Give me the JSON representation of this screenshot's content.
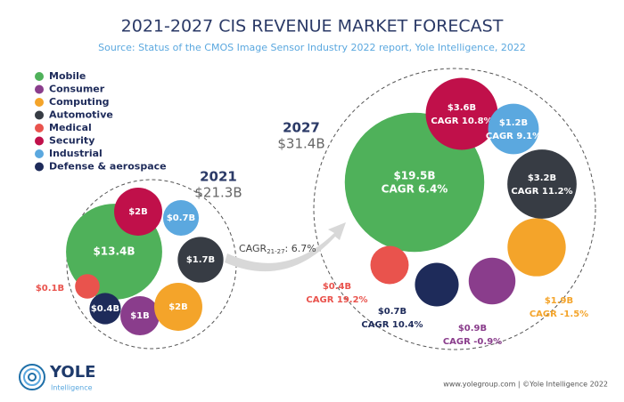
{
  "title": "2021-2027 CIS REVENUE MARKET FORECAST",
  "subtitle": "Source: Status of the CMOS Image Sensor Industry 2022 report, Yole Intelligence, 2022",
  "logo": {
    "name": "YOLE",
    "tagline": "Intelligence"
  },
  "footer": "www.yolegroup.com | ©Yole Intelligence 2022",
  "growth": {
    "label": "CAGR",
    "subscript": "21-27",
    "value": 6.7,
    "value_label": ": 6.7%"
  },
  "chart_data": [
    {
      "type": "bubble",
      "year": "2021",
      "total": 21.3,
      "total_label": "$21.3B",
      "categories": [
        "Mobile",
        "Consumer",
        "Computing",
        "Automotive",
        "Medical",
        "Security",
        "Industrial",
        "Defense & aerospace"
      ],
      "colors": [
        "#4fb15a",
        "#8a3d8c",
        "#f4a42a",
        "#373c44",
        "#e9534d",
        "#c0104a",
        "#5ba8df",
        "#1e2b5a"
      ],
      "values": [
        13.4,
        1,
        2,
        1.7,
        0.1,
        2,
        0.7,
        0.4
      ],
      "value_labels": [
        "$13.4B",
        "$1B",
        "$2B",
        "$1.7B",
        "$0.1B",
        "$2B",
        "$0.7B",
        "$0.4B"
      ]
    },
    {
      "type": "bubble",
      "year": "2027",
      "total": 31.4,
      "total_label": "$31.4B",
      "categories": [
        "Mobile",
        "Consumer",
        "Computing",
        "Automotive",
        "Medical",
        "Security",
        "Industrial",
        "Defense & aerospace"
      ],
      "colors": [
        "#4fb15a",
        "#8a3d8c",
        "#f4a42a",
        "#373c44",
        "#e9534d",
        "#c0104a",
        "#5ba8df",
        "#1e2b5a"
      ],
      "values": [
        19.5,
        0.9,
        1.9,
        3.2,
        0.4,
        3.6,
        1.2,
        0.7
      ],
      "value_labels": [
        "$19.5B",
        "$0.9B",
        "$1.9B",
        "$3.2B",
        "$0.4B",
        "$3.6B",
        "$1.2B",
        "$0.7B"
      ],
      "cagr": [
        6.4,
        -0.9,
        -1.5,
        11.2,
        19.2,
        10.8,
        9.1,
        10.4
      ],
      "cagr_labels": [
        "CAGR 6.4%",
        "CAGR -0.9%",
        "CAGR -1.5%",
        "CAGR 11.2%",
        "CAGR 19.2%",
        "CAGR 10.8%",
        "CAGR 9.1%",
        "CAGR 10.4%"
      ]
    }
  ]
}
